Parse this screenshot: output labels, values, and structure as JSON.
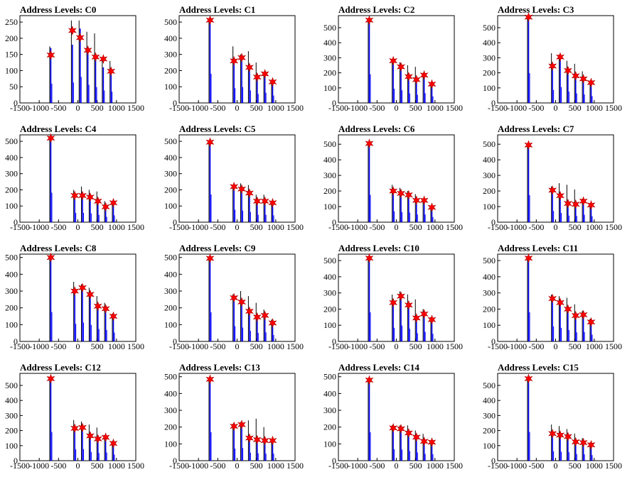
{
  "colors": {
    "histogram": "#0000ff",
    "peak_line": "#000000",
    "marker": "#ff0000",
    "frame": "#000000"
  },
  "chart_data": [
    {
      "type": "bar",
      "title": "Address Levels: C0",
      "xlim": [
        -1500,
        1500
      ],
      "ylim": [
        0,
        270
      ],
      "yticks": [
        0,
        50,
        100,
        150,
        200,
        250
      ],
      "xticks": [
        -1500,
        -1000,
        -500,
        0,
        500,
        1000,
        1500
      ],
      "peaks": [
        {
          "x": -700,
          "black": 175,
          "blue": 170,
          "marker": 148
        },
        {
          "x": -140,
          "black": 255,
          "blue": 180,
          "marker": 224
        },
        {
          "x": 60,
          "black": 255,
          "blue": 230,
          "marker": 202
        },
        {
          "x": 260,
          "black": 220,
          "blue": 160,
          "marker": 163
        },
        {
          "x": 460,
          "black": 215,
          "blue": 140,
          "marker": 142
        },
        {
          "x": 660,
          "black": 140,
          "blue": 110,
          "marker": 136
        },
        {
          "x": 860,
          "black": 130,
          "blue": 100,
          "marker": 98
        }
      ]
    },
    {
      "type": "bar",
      "title": "Address Levels: C1",
      "xlim": [
        -1500,
        1500
      ],
      "ylim": [
        0,
        540
      ],
      "yticks": [
        0,
        100,
        200,
        300,
        400,
        500
      ],
      "xticks": [
        -1500,
        -1000,
        -500,
        0,
        500,
        1000,
        1500
      ],
      "peaks": [
        {
          "x": -700,
          "black": 520,
          "blue": 515,
          "marker": 512
        },
        {
          "x": -80,
          "black": 350,
          "blue": 260,
          "marker": 260
        },
        {
          "x": 120,
          "black": 300,
          "blue": 280,
          "marker": 280
        },
        {
          "x": 320,
          "black": 320,
          "blue": 220,
          "marker": 220
        },
        {
          "x": 520,
          "black": 250,
          "blue": 160,
          "marker": 160
        },
        {
          "x": 720,
          "black": 180,
          "blue": 180,
          "marker": 180
        },
        {
          "x": 920,
          "black": 140,
          "blue": 130,
          "marker": 130
        }
      ]
    },
    {
      "type": "bar",
      "title": "Address Levels: C2",
      "xlim": [
        -1500,
        1500
      ],
      "ylim": [
        0,
        580
      ],
      "yticks": [
        0,
        100,
        200,
        300,
        400,
        500
      ],
      "xticks": [
        -1500,
        -1000,
        -500,
        0,
        500,
        1000,
        1500
      ],
      "peaks": [
        {
          "x": -700,
          "black": 550,
          "blue": 545,
          "marker": 550
        },
        {
          "x": -80,
          "black": 290,
          "blue": 270,
          "marker": 280
        },
        {
          "x": 120,
          "black": 270,
          "blue": 240,
          "marker": 240
        },
        {
          "x": 320,
          "black": 250,
          "blue": 180,
          "marker": 175
        },
        {
          "x": 520,
          "black": 240,
          "blue": 155,
          "marker": 155
        },
        {
          "x": 720,
          "black": 200,
          "blue": 185,
          "marker": 185
        },
        {
          "x": 920,
          "black": 130,
          "blue": 125,
          "marker": 125
        }
      ]
    },
    {
      "type": "bar",
      "title": "Address Levels: C3",
      "xlim": [
        -1500,
        1500
      ],
      "ylim": [
        0,
        580
      ],
      "yticks": [
        0,
        100,
        200,
        300,
        400,
        500
      ],
      "xticks": [
        -1500,
        -1000,
        -500,
        0,
        500,
        1000,
        1500
      ],
      "peaks": [
        {
          "x": -700,
          "black": 570,
          "blue": 565,
          "marker": 570
        },
        {
          "x": -80,
          "black": 330,
          "blue": 245,
          "marker": 245
        },
        {
          "x": 120,
          "black": 320,
          "blue": 300,
          "marker": 305
        },
        {
          "x": 320,
          "black": 280,
          "blue": 215,
          "marker": 215
        },
        {
          "x": 520,
          "black": 260,
          "blue": 180,
          "marker": 180
        },
        {
          "x": 720,
          "black": 210,
          "blue": 160,
          "marker": 160
        },
        {
          "x": 920,
          "black": 140,
          "blue": 130,
          "marker": 135
        }
      ]
    },
    {
      "type": "bar",
      "title": "Address Levels: C4",
      "xlim": [
        -1500,
        1500
      ],
      "ylim": [
        0,
        540
      ],
      "yticks": [
        0,
        100,
        200,
        300,
        400,
        500
      ],
      "xticks": [
        -1500,
        -1000,
        -500,
        0,
        500,
        1000,
        1500
      ],
      "peaks": [
        {
          "x": -700,
          "black": 525,
          "blue": 520,
          "marker": 520
        },
        {
          "x": -80,
          "black": 200,
          "blue": 165,
          "marker": 165
        },
        {
          "x": 120,
          "black": 220,
          "blue": 165,
          "marker": 165
        },
        {
          "x": 320,
          "black": 200,
          "blue": 155,
          "marker": 155
        },
        {
          "x": 520,
          "black": 190,
          "blue": 130,
          "marker": 130
        },
        {
          "x": 720,
          "black": 130,
          "blue": 95,
          "marker": 95
        },
        {
          "x": 920,
          "black": 125,
          "blue": 120,
          "marker": 120
        }
      ]
    },
    {
      "type": "bar",
      "title": "Address Levels: C5",
      "xlim": [
        -1500,
        1500
      ],
      "ylim": [
        0,
        540
      ],
      "yticks": [
        0,
        100,
        200,
        300,
        400,
        500
      ],
      "xticks": [
        -1500,
        -1000,
        -500,
        0,
        500,
        1000,
        1500
      ],
      "peaks": [
        {
          "x": -700,
          "black": 500,
          "blue": 490,
          "marker": 495
        },
        {
          "x": -80,
          "black": 230,
          "blue": 220,
          "marker": 220
        },
        {
          "x": 120,
          "black": 240,
          "blue": 205,
          "marker": 205
        },
        {
          "x": 320,
          "black": 230,
          "blue": 180,
          "marker": 180
        },
        {
          "x": 520,
          "black": 170,
          "blue": 130,
          "marker": 130
        },
        {
          "x": 720,
          "black": 170,
          "blue": 130,
          "marker": 130
        },
        {
          "x": 920,
          "black": 125,
          "blue": 120,
          "marker": 120
        }
      ]
    },
    {
      "type": "bar",
      "title": "Address Levels: C6",
      "xlim": [
        -1500,
        1500
      ],
      "ylim": [
        0,
        560
      ],
      "yticks": [
        0,
        100,
        200,
        300,
        400,
        500
      ],
      "xticks": [
        -1500,
        -1000,
        -500,
        0,
        500,
        1000,
        1500
      ],
      "peaks": [
        {
          "x": -700,
          "black": 510,
          "blue": 500,
          "marker": 505
        },
        {
          "x": -80,
          "black": 240,
          "blue": 200,
          "marker": 200
        },
        {
          "x": 120,
          "black": 220,
          "blue": 185,
          "marker": 185
        },
        {
          "x": 320,
          "black": 200,
          "blue": 175,
          "marker": 175
        },
        {
          "x": 520,
          "black": 180,
          "blue": 140,
          "marker": 140
        },
        {
          "x": 720,
          "black": 150,
          "blue": 140,
          "marker": 140
        },
        {
          "x": 920,
          "black": 100,
          "blue": 95,
          "marker": 95
        }
      ]
    },
    {
      "type": "bar",
      "title": "Address Levels: C7",
      "xlim": [
        -1500,
        1500
      ],
      "ylim": [
        0,
        560
      ],
      "yticks": [
        0,
        100,
        200,
        300,
        400,
        500
      ],
      "xticks": [
        -1500,
        -1000,
        -500,
        0,
        500,
        1000,
        1500
      ],
      "peaks": [
        {
          "x": -700,
          "black": 500,
          "blue": 495,
          "marker": 495
        },
        {
          "x": -80,
          "black": 230,
          "blue": 205,
          "marker": 205
        },
        {
          "x": 120,
          "black": 250,
          "blue": 170,
          "marker": 170
        },
        {
          "x": 320,
          "black": 240,
          "blue": 120,
          "marker": 120
        },
        {
          "x": 520,
          "black": 210,
          "blue": 115,
          "marker": 115
        },
        {
          "x": 720,
          "black": 150,
          "blue": 135,
          "marker": 135
        },
        {
          "x": 920,
          "black": 120,
          "blue": 110,
          "marker": 110
        }
      ]
    },
    {
      "type": "bar",
      "title": "Address Levels: C8",
      "xlim": [
        -1500,
        1500
      ],
      "ylim": [
        0,
        520
      ],
      "yticks": [
        0,
        100,
        200,
        300,
        400,
        500
      ],
      "xticks": [
        -1500,
        -1000,
        -500,
        0,
        500,
        1000,
        1500
      ],
      "peaks": [
        {
          "x": -700,
          "black": 505,
          "blue": 500,
          "marker": 500
        },
        {
          "x": -80,
          "black": 355,
          "blue": 300,
          "marker": 300
        },
        {
          "x": 120,
          "black": 340,
          "blue": 320,
          "marker": 320
        },
        {
          "x": 320,
          "black": 320,
          "blue": 280,
          "marker": 280
        },
        {
          "x": 520,
          "black": 270,
          "blue": 210,
          "marker": 210
        },
        {
          "x": 720,
          "black": 230,
          "blue": 195,
          "marker": 195
        },
        {
          "x": 920,
          "black": 165,
          "blue": 150,
          "marker": 150
        }
      ]
    },
    {
      "type": "bar",
      "title": "Address Levels: C9",
      "xlim": [
        -1500,
        1500
      ],
      "ylim": [
        0,
        520
      ],
      "yticks": [
        0,
        100,
        200,
        300,
        400,
        500
      ],
      "xticks": [
        -1500,
        -1000,
        -500,
        0,
        500,
        1000,
        1500
      ],
      "peaks": [
        {
          "x": -700,
          "black": 500,
          "blue": 495,
          "marker": 495
        },
        {
          "x": -80,
          "black": 280,
          "blue": 260,
          "marker": 260
        },
        {
          "x": 120,
          "black": 300,
          "blue": 235,
          "marker": 235
        },
        {
          "x": 320,
          "black": 270,
          "blue": 180,
          "marker": 180
        },
        {
          "x": 520,
          "black": 230,
          "blue": 145,
          "marker": 145
        },
        {
          "x": 720,
          "black": 190,
          "blue": 155,
          "marker": 155
        },
        {
          "x": 920,
          "black": 130,
          "blue": 110,
          "marker": 110
        }
      ]
    },
    {
      "type": "bar",
      "title": "Address Levels: C10",
      "xlim": [
        -1500,
        1500
      ],
      "ylim": [
        0,
        540
      ],
      "yticks": [
        0,
        100,
        200,
        300,
        400,
        500
      ],
      "xticks": [
        -1500,
        -1000,
        -500,
        0,
        500,
        1000,
        1500
      ],
      "peaks": [
        {
          "x": -700,
          "black": 520,
          "blue": 515,
          "marker": 515
        },
        {
          "x": -80,
          "black": 290,
          "blue": 240,
          "marker": 240
        },
        {
          "x": 120,
          "black": 310,
          "blue": 280,
          "marker": 280
        },
        {
          "x": 320,
          "black": 290,
          "blue": 225,
          "marker": 225
        },
        {
          "x": 520,
          "black": 260,
          "blue": 145,
          "marker": 145
        },
        {
          "x": 720,
          "black": 200,
          "blue": 170,
          "marker": 170
        },
        {
          "x": 920,
          "black": 150,
          "blue": 135,
          "marker": 135
        }
      ]
    },
    {
      "type": "bar",
      "title": "Address Levels: C11",
      "xlim": [
        -1500,
        1500
      ],
      "ylim": [
        0,
        540
      ],
      "yticks": [
        0,
        100,
        200,
        300,
        400,
        500
      ],
      "xticks": [
        -1500,
        -1000,
        -500,
        0,
        500,
        1000,
        1500
      ],
      "peaks": [
        {
          "x": -700,
          "black": 520,
          "blue": 515,
          "marker": 515
        },
        {
          "x": -80,
          "black": 290,
          "blue": 265,
          "marker": 265
        },
        {
          "x": 120,
          "black": 280,
          "blue": 240,
          "marker": 240
        },
        {
          "x": 320,
          "black": 270,
          "blue": 200,
          "marker": 200
        },
        {
          "x": 520,
          "black": 230,
          "blue": 160,
          "marker": 160
        },
        {
          "x": 720,
          "black": 190,
          "blue": 165,
          "marker": 165
        },
        {
          "x": 920,
          "black": 140,
          "blue": 120,
          "marker": 120
        }
      ]
    },
    {
      "type": "bar",
      "title": "Address Levels: C12",
      "xlim": [
        -1500,
        1500
      ],
      "ylim": [
        0,
        580
      ],
      "yticks": [
        0,
        100,
        200,
        300,
        400,
        500
      ],
      "xticks": [
        -1500,
        -1000,
        -500,
        0,
        500,
        1000,
        1500
      ],
      "peaks": [
        {
          "x": -700,
          "black": 550,
          "blue": 545,
          "marker": 545
        },
        {
          "x": -80,
          "black": 270,
          "blue": 215,
          "marker": 215
        },
        {
          "x": 120,
          "black": 260,
          "blue": 220,
          "marker": 220
        },
        {
          "x": 320,
          "black": 240,
          "blue": 165,
          "marker": 165
        },
        {
          "x": 520,
          "black": 220,
          "blue": 145,
          "marker": 145
        },
        {
          "x": 720,
          "black": 170,
          "blue": 155,
          "marker": 155
        },
        {
          "x": 920,
          "black": 130,
          "blue": 115,
          "marker": 115
        }
      ]
    },
    {
      "type": "bar",
      "title": "Address Levels: C13",
      "xlim": [
        -1500,
        1500
      ],
      "ylim": [
        0,
        520
      ],
      "yticks": [
        0,
        100,
        200,
        300,
        400,
        500
      ],
      "xticks": [
        -1500,
        -1000,
        -500,
        0,
        500,
        1000,
        1500
      ],
      "peaks": [
        {
          "x": -700,
          "black": 490,
          "blue": 485,
          "marker": 485
        },
        {
          "x": -80,
          "black": 220,
          "blue": 205,
          "marker": 205
        },
        {
          "x": 120,
          "black": 230,
          "blue": 215,
          "marker": 215
        },
        {
          "x": 320,
          "black": 240,
          "blue": 135,
          "marker": 135
        },
        {
          "x": 520,
          "black": 250,
          "blue": 125,
          "marker": 125
        },
        {
          "x": 720,
          "black": 200,
          "blue": 120,
          "marker": 120
        },
        {
          "x": 920,
          "black": 130,
          "blue": 120,
          "marker": 120
        }
      ]
    },
    {
      "type": "bar",
      "title": "Address Levels: C14",
      "xlim": [
        -1500,
        1500
      ],
      "ylim": [
        0,
        520
      ],
      "yticks": [
        0,
        100,
        200,
        300,
        400,
        500
      ],
      "xticks": [
        -1500,
        -1000,
        -500,
        0,
        500,
        1000,
        1500
      ],
      "peaks": [
        {
          "x": -700,
          "black": 490,
          "blue": 485,
          "marker": 480
        },
        {
          "x": -80,
          "black": 210,
          "blue": 195,
          "marker": 195
        },
        {
          "x": 120,
          "black": 210,
          "blue": 190,
          "marker": 190
        },
        {
          "x": 320,
          "black": 210,
          "blue": 165,
          "marker": 165
        },
        {
          "x": 520,
          "black": 180,
          "blue": 140,
          "marker": 140
        },
        {
          "x": 720,
          "black": 160,
          "blue": 115,
          "marker": 115
        },
        {
          "x": 920,
          "black": 120,
          "blue": 110,
          "marker": 110
        }
      ]
    },
    {
      "type": "bar",
      "title": "Address Levels: C15",
      "xlim": [
        -1500,
        1500
      ],
      "ylim": [
        0,
        580
      ],
      "yticks": [
        0,
        100,
        200,
        300,
        400,
        500
      ],
      "xticks": [
        -1500,
        -1000,
        -500,
        0,
        500,
        1000,
        1500
      ],
      "peaks": [
        {
          "x": -700,
          "black": 550,
          "blue": 545,
          "marker": 545
        },
        {
          "x": -80,
          "black": 240,
          "blue": 180,
          "marker": 180
        },
        {
          "x": 120,
          "black": 230,
          "blue": 170,
          "marker": 170
        },
        {
          "x": 320,
          "black": 210,
          "blue": 160,
          "marker": 160
        },
        {
          "x": 520,
          "black": 180,
          "blue": 125,
          "marker": 125
        },
        {
          "x": 720,
          "black": 150,
          "blue": 120,
          "marker": 120
        },
        {
          "x": 920,
          "black": 120,
          "blue": 105,
          "marker": 105
        }
      ]
    }
  ]
}
